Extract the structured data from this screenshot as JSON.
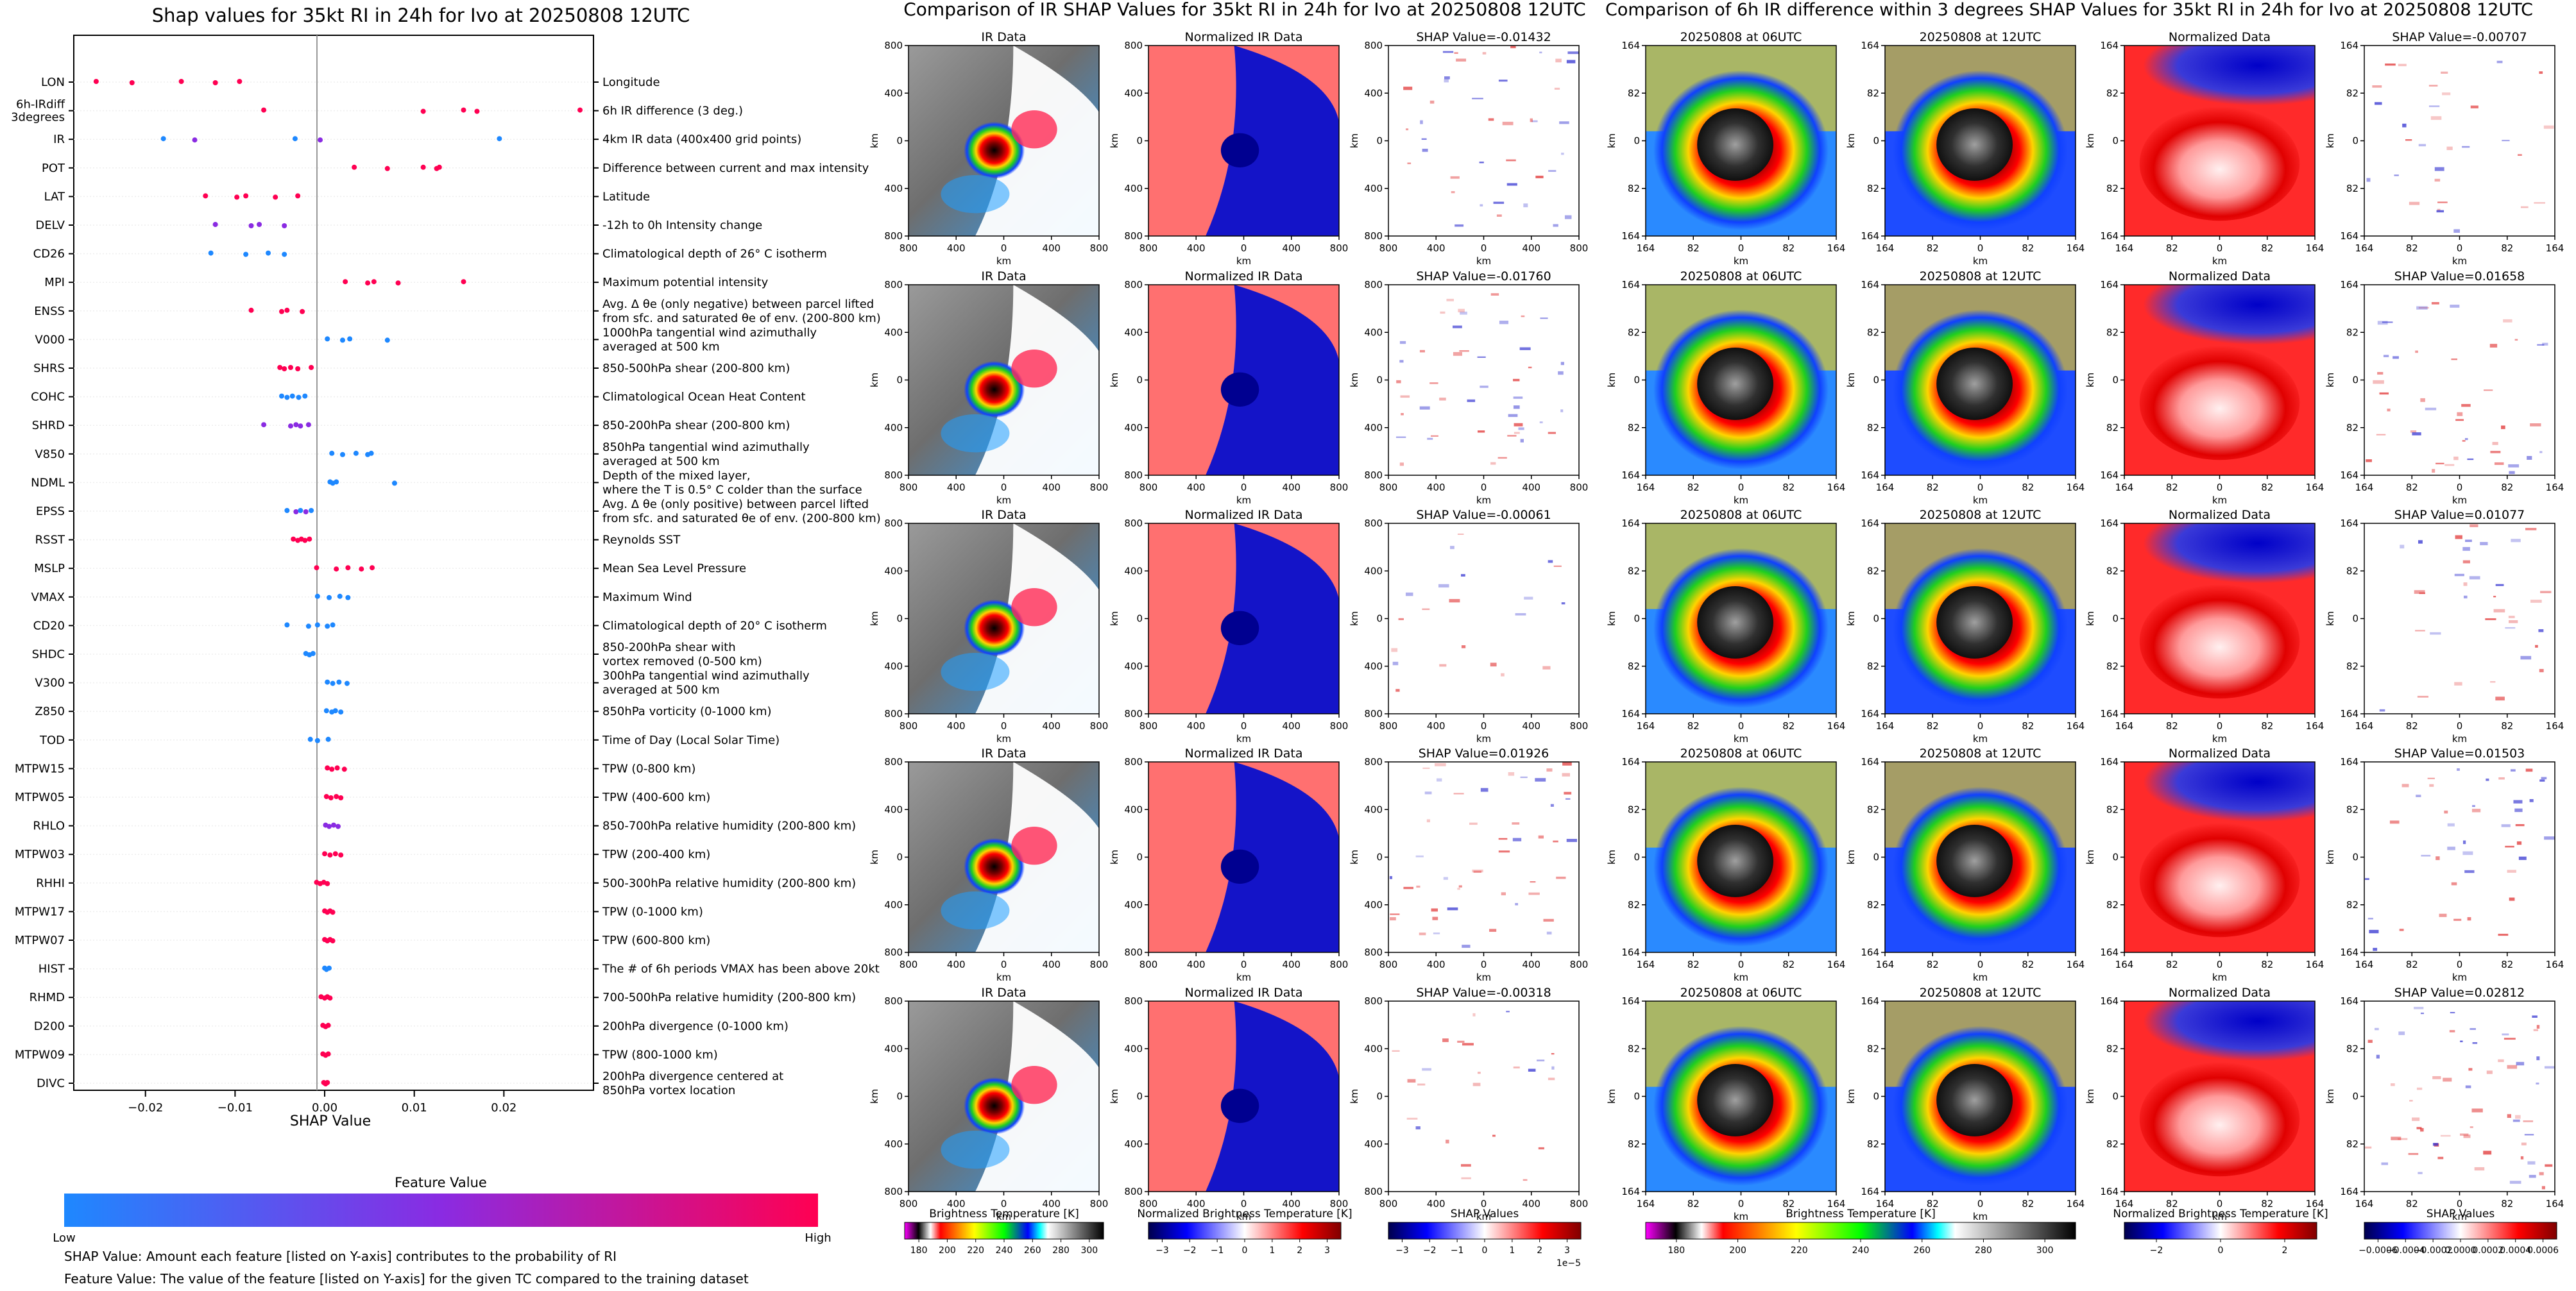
{
  "colors": {
    "low": "#1e88ff",
    "mid": "#8a2be2",
    "high": "#ff0052",
    "ir_warm": "#808080",
    "ir_cold": "#ff0050",
    "norm_pos": "#ff4040",
    "norm_neg": "#0000cc"
  },
  "chart_data": [
    {
      "type": "scatter",
      "title": "Shap values for 35kt RI in 24h for Ivo at 20250808 12UTC",
      "xlabel": "SHAP Value",
      "xlim": [
        -0.028,
        0.03
      ],
      "xticks": [
        "−0.02",
        "−0.01",
        "0.00",
        "0.01",
        "0.02"
      ],
      "xtick_values": [
        -0.02,
        -0.01,
        0.0,
        0.01,
        0.02
      ],
      "features": [
        {
          "name": "LON",
          "desc": [
            "Longitude"
          ],
          "shap": [
            -0.0255,
            -0.0215,
            -0.016,
            -0.0122,
            -0.0095
          ],
          "level": "high"
        },
        {
          "name": "6h-IRdiff 3degrees",
          "label_lines": [
            "6h-IRdiff",
            "3degrees"
          ],
          "desc": [
            "6h IR difference (3 deg.)"
          ],
          "shap": [
            -0.0068,
            0.011,
            0.0155,
            0.017,
            0.0285
          ],
          "level": "high"
        },
        {
          "name": "IR",
          "desc": [
            "4km IR data (400x400 grid points)"
          ],
          "shap": [
            -0.018,
            -0.0145,
            -0.0033,
            -0.0005,
            0.0195
          ],
          "level": "mix"
        },
        {
          "name": "POT",
          "desc": [
            "Difference between current and max intensity"
          ],
          "shap": [
            0.0033,
            0.007,
            0.011,
            0.0125,
            0.0128
          ],
          "level": "high"
        },
        {
          "name": "LAT",
          "desc": [
            "Latitude"
          ],
          "shap": [
            -0.0133,
            -0.0098,
            -0.0088,
            -0.0055,
            -0.003
          ],
          "level": "high"
        },
        {
          "name": "DELV",
          "desc": [
            "-12h to 0h Intensity change"
          ],
          "shap": [
            -0.0122,
            -0.0082,
            -0.0073,
            -0.0045
          ],
          "level": "mid"
        },
        {
          "name": "CD26",
          "desc": [
            "Climatological depth of 26° C isotherm"
          ],
          "shap": [
            -0.0127,
            -0.0088,
            -0.0063,
            -0.0045
          ],
          "level": "low"
        },
        {
          "name": "MPI",
          "desc": [
            "Maximum potential intensity"
          ],
          "shap": [
            0.0023,
            0.0048,
            0.0055,
            0.0082,
            0.0155
          ],
          "level": "high"
        },
        {
          "name": "ENSS",
          "desc": [
            "Avg. Δ θe (only negative) between parcel lifted",
            "from sfc. and saturated θe of env. (200-800 km)"
          ],
          "shap": [
            -0.0082,
            -0.0048,
            -0.0042,
            -0.0025
          ],
          "level": "high"
        },
        {
          "name": "V000",
          "desc": [
            "1000hPa tangential wind azimuthally",
            "averaged at 500 km"
          ],
          "shap": [
            0.0003,
            0.002,
            0.0028,
            0.007
          ],
          "level": "low"
        },
        {
          "name": "SHRS",
          "desc": [
            "850-500hPa shear (200-800 km)"
          ],
          "shap": [
            -0.005,
            -0.0045,
            -0.0038,
            -0.003,
            -0.0015
          ],
          "level": "high"
        },
        {
          "name": "COHC",
          "desc": [
            "Climatological Ocean Heat Content"
          ],
          "shap": [
            -0.0048,
            -0.0042,
            -0.0036,
            -0.0029,
            -0.0022
          ],
          "level": "low"
        },
        {
          "name": "SHRD",
          "desc": [
            "850-200hPa shear (200-800 km)"
          ],
          "shap": [
            -0.0068,
            -0.0038,
            -0.0032,
            -0.0027,
            -0.0018
          ],
          "level": "mid"
        },
        {
          "name": "V850",
          "desc": [
            "850hPa tangential wind azimuthally",
            "averaged at 500 km"
          ],
          "shap": [
            0.0008,
            0.002,
            0.0035,
            0.0048,
            0.0052
          ],
          "level": "low"
        },
        {
          "name": "NDML",
          "desc": [
            "Depth of the mixed layer,",
            "where the T is 0.5° C colder than the surface"
          ],
          "shap": [
            0.0006,
            0.0009,
            0.0013,
            0.0078
          ],
          "level": "low"
        },
        {
          "name": "EPSS",
          "desc": [
            "Avg. Δ θe (only positive) between parcel lifted",
            "from sfc. and saturated θe of env. (200-800 km)"
          ],
          "shap": [
            -0.0042,
            -0.0032,
            -0.0027,
            -0.0021,
            -0.0015
          ],
          "level": "mix"
        },
        {
          "name": "RSST",
          "desc": [
            "Reynolds SST"
          ],
          "shap": [
            -0.0035,
            -0.003,
            -0.0026,
            -0.0022,
            -0.0017
          ],
          "level": "high"
        },
        {
          "name": "MSLP",
          "desc": [
            "Mean Sea Level Pressure"
          ],
          "shap": [
            -0.0009,
            0.0013,
            0.0026,
            0.0041,
            0.0053
          ],
          "level": "high"
        },
        {
          "name": "VMAX",
          "desc": [
            "Maximum Wind"
          ],
          "shap": [
            -0.0008,
            0.0005,
            0.0017,
            0.0026
          ],
          "level": "low"
        },
        {
          "name": "CD20",
          "desc": [
            "Climatological depth of 20° C isotherm"
          ],
          "shap": [
            -0.0042,
            -0.0018,
            -0.0008,
            0.0003,
            0.0009
          ],
          "level": "low"
        },
        {
          "name": "SHDC",
          "desc": [
            "850-200hPa shear with",
            "vortex removed (0-500 km)"
          ],
          "shap": [
            -0.0021,
            -0.0017,
            -0.0013
          ],
          "level": "low"
        },
        {
          "name": "V300",
          "desc": [
            "300hPa tangential wind azimuthally",
            "averaged at 500 km"
          ],
          "shap": [
            0.0003,
            0.0009,
            0.0016,
            0.0025
          ],
          "level": "low"
        },
        {
          "name": "Z850",
          "desc": [
            "850hPa vorticity (0-1000 km)"
          ],
          "shap": [
            0.0002,
            0.0008,
            0.0012,
            0.0018
          ],
          "level": "low"
        },
        {
          "name": "TOD",
          "desc": [
            "Time of Day (Local Solar Time)"
          ],
          "shap": [
            -0.0016,
            -0.0008,
            0.0004
          ],
          "level": "low"
        },
        {
          "name": "MTPW15",
          "desc": [
            "TPW (0-800 km)"
          ],
          "shap": [
            0.0003,
            0.0008,
            0.0014,
            0.0022
          ],
          "level": "high"
        },
        {
          "name": "MTPW05",
          "desc": [
            "TPW (400-600 km)"
          ],
          "shap": [
            0.0002,
            0.0007,
            0.0013,
            0.0018
          ],
          "level": "high"
        },
        {
          "name": "RHLO",
          "desc": [
            "850-700hPa relative humidity (200-800 km)"
          ],
          "shap": [
            0.0001,
            0.0005,
            0.001,
            0.0015
          ],
          "level": "mid"
        },
        {
          "name": "MTPW03",
          "desc": [
            "TPW (200-400 km)"
          ],
          "shap": [
            0.0,
            0.0006,
            0.0012,
            0.0018
          ],
          "level": "high"
        },
        {
          "name": "RHHI",
          "desc": [
            "500-300hPa relative humidity (200-800 km)"
          ],
          "shap": [
            -0.0009,
            -0.0005,
            -0.0001,
            0.0003
          ],
          "level": "high"
        },
        {
          "name": "MTPW17",
          "desc": [
            "TPW (0-1000 km)"
          ],
          "shap": [
            0.0,
            0.0003,
            0.0006,
            0.0009
          ],
          "level": "high"
        },
        {
          "name": "MTPW07",
          "desc": [
            "TPW (600-800 km)"
          ],
          "shap": [
            0.0,
            0.0003,
            0.0006,
            0.0009
          ],
          "level": "high"
        },
        {
          "name": "HIST",
          "desc": [
            "The # of 6h periods VMAX has been above 20kt"
          ],
          "shap": [
            0.0,
            0.0002,
            0.0005
          ],
          "level": "low"
        },
        {
          "name": "RHMD",
          "desc": [
            "700-500hPa relative humidity (200-800 km)"
          ],
          "shap": [
            -0.0004,
            0.0,
            0.0003,
            0.0006
          ],
          "level": "high"
        },
        {
          "name": "D200",
          "desc": [
            "200hPa divergence (0-1000 km)"
          ],
          "shap": [
            -0.0002,
            0.0001,
            0.0004
          ],
          "level": "high"
        },
        {
          "name": "MTPW09",
          "desc": [
            "TPW (800-1000 km)"
          ],
          "shap": [
            -0.0002,
            0.0001,
            0.0004
          ],
          "level": "high"
        },
        {
          "name": "DIVC",
          "desc": [
            "200hPa divergence centered at",
            "850hPa vortex location"
          ],
          "shap": [
            -0.0001,
            0.0001,
            0.0003
          ],
          "level": "high"
        }
      ]
    },
    {
      "type": "heatmap",
      "title": "Comparison of IR SHAP Values for 35kt RI in 24h for Ivo at 20250808 12UTC",
      "rows": 5,
      "panel_titles": [
        "IR Data",
        "Normalized IR Data"
      ],
      "shap_titles": [
        "SHAP Value=-0.01432",
        "SHAP Value=-0.01760",
        "SHAP Value=-0.00061",
        "SHAP Value=0.01926",
        "SHAP Value=-0.00318"
      ],
      "axis_label": "km",
      "ticks": [
        "800",
        "400",
        "0",
        "400",
        "800"
      ],
      "colorbars": [
        {
          "label": "Brightness Temperature [K]",
          "ticks": [
            "180",
            "200",
            "220",
            "240",
            "260",
            "280",
            "300"
          ]
        },
        {
          "label": "Normalized Brightness Temperature [K]",
          "ticks": [
            "−3",
            "−2",
            "−1",
            "0",
            "1",
            "2",
            "3"
          ]
        },
        {
          "label": "SHAP Values",
          "ticks": [
            "−3",
            "−2",
            "−1",
            "0",
            "1",
            "2",
            "3"
          ],
          "exponent": "1e−5"
        }
      ]
    },
    {
      "type": "heatmap",
      "title": "Comparison of 6h IR difference within 3 degrees SHAP Values for 35kt RI in 24h for Ivo at 20250808 12UTC",
      "rows": 5,
      "panel_titles": [
        "20250808 at 06UTC",
        "20250808 at 12UTC",
        "Normalized Data"
      ],
      "shap_titles": [
        "SHAP Value=-0.00707",
        "SHAP Value=0.01658",
        "SHAP Value=0.01077",
        "SHAP Value=0.01503",
        "SHAP Value=0.02812"
      ],
      "axis_label": "km",
      "ticks": [
        "164",
        "82",
        "0",
        "82",
        "164"
      ],
      "colorbars": [
        {
          "label": "Brightness Temperature [K]",
          "ticks": [
            "180",
            "200",
            "220",
            "240",
            "260",
            "280",
            "300"
          ]
        },
        {
          "label": "Normalized Brightness Temperature [K]",
          "ticks": [
            "−2",
            "0",
            "2"
          ]
        },
        {
          "label": "SHAP Values",
          "ticks": [
            "−0.0006",
            "−0.0004",
            "−0.0002",
            "0.0000",
            "0.0002",
            "0.0004",
            "0.0006"
          ]
        }
      ]
    }
  ],
  "legend": {
    "title": "Feature Value",
    "low": "Low",
    "high": "High"
  },
  "footnotes": [
    "SHAP Value: Amount each feature [listed on Y-axis] contributes to the probability of RI",
    "Feature Value: The value of the feature [listed on Y-axis] for the given TC compared to the training dataset"
  ]
}
